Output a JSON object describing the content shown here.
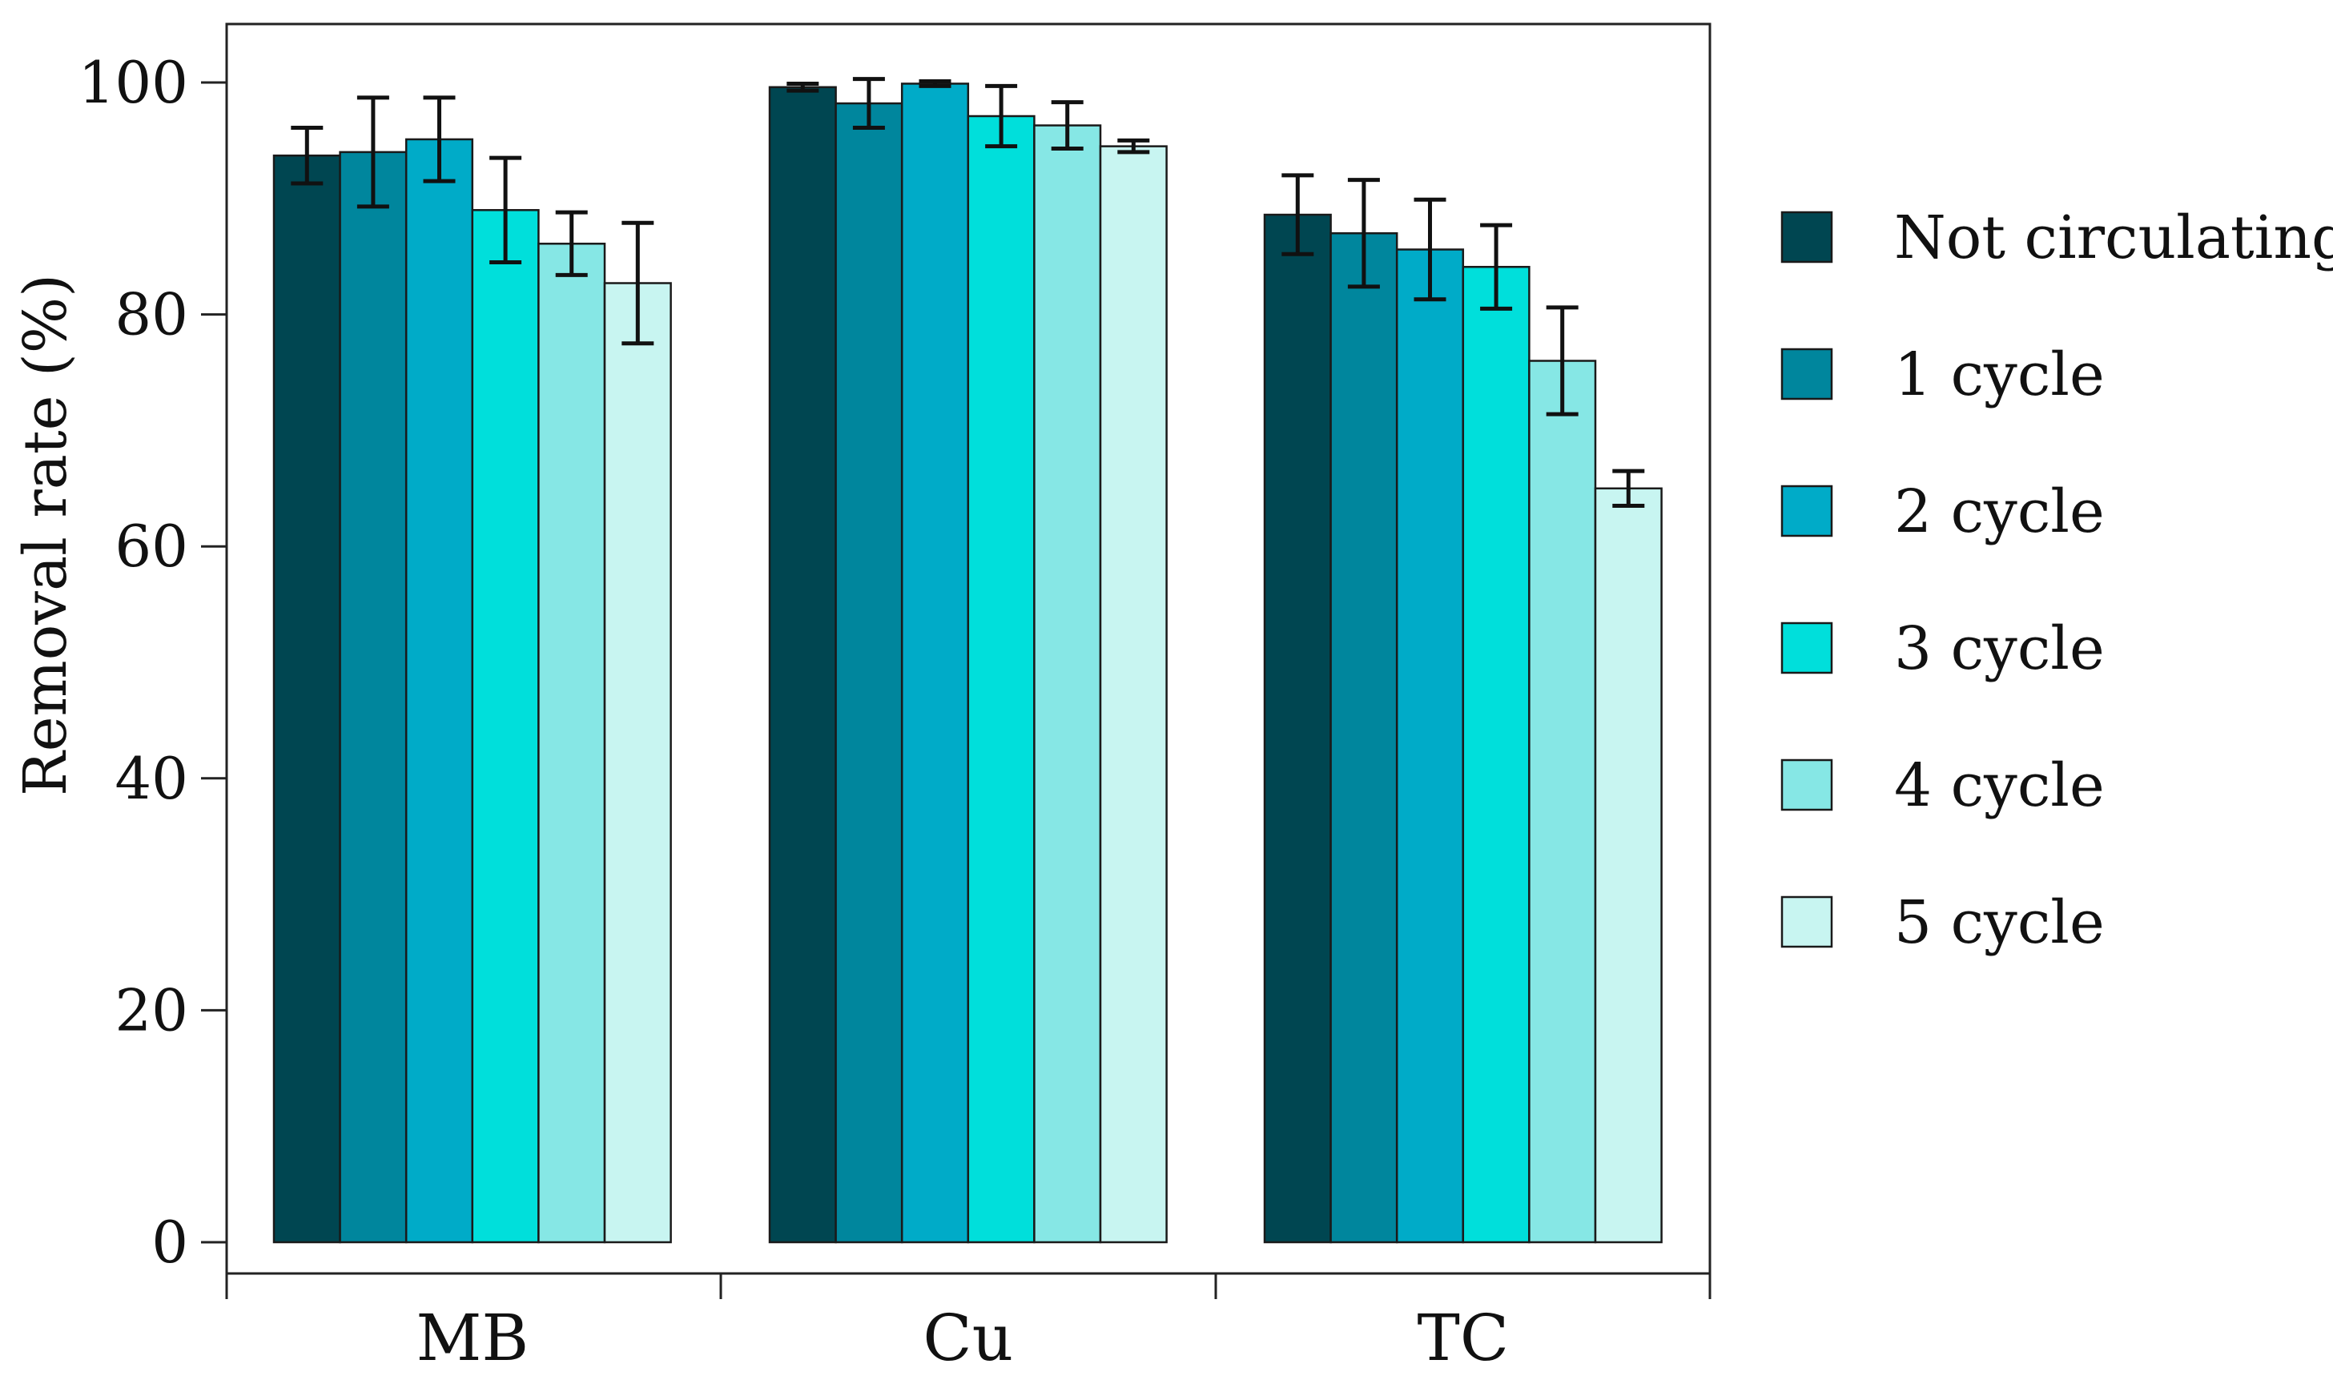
{
  "chart_data": {
    "type": "bar",
    "title": "",
    "xlabel": "",
    "ylabel": "Removal rate (%)",
    "ylim": [
      0,
      100
    ],
    "yticks": [
      0,
      20,
      40,
      60,
      80,
      100
    ],
    "ytick_labels": [
      "0",
      "20",
      "40",
      "60",
      "80",
      "100"
    ],
    "categories": [
      "MB",
      "Cu",
      "TC"
    ],
    "grid": false,
    "legend_position": "right",
    "series": [
      {
        "name": "Not circulating",
        "color": "#004651",
        "values": [
          93.7,
          99.6,
          88.6
        ],
        "errors": [
          2.4,
          0.3,
          3.4
        ]
      },
      {
        "name": "1 cycle",
        "color": "#00869d",
        "values": [
          94.0,
          98.2,
          87.0
        ],
        "errors": [
          4.7,
          2.1,
          4.6
        ]
      },
      {
        "name": "2 cycle",
        "color": "#00abc8",
        "values": [
          95.1,
          99.9,
          85.6
        ],
        "errors": [
          3.6,
          0.2,
          4.3
        ]
      },
      {
        "name": "3 cycle",
        "color": "#00dfdb",
        "values": [
          89.0,
          97.1,
          84.1
        ],
        "errors": [
          4.5,
          2.6,
          3.6
        ]
      },
      {
        "name": "4 cycle",
        "color": "#86e7e5",
        "values": [
          86.1,
          96.3,
          76.0
        ],
        "errors": [
          2.7,
          2.0,
          4.6
        ]
      },
      {
        "name": "5 cycle",
        "color": "#c8f5f1",
        "values": [
          82.7,
          94.5,
          65.0
        ],
        "errors": [
          5.2,
          0.5,
          1.5
        ]
      }
    ]
  }
}
